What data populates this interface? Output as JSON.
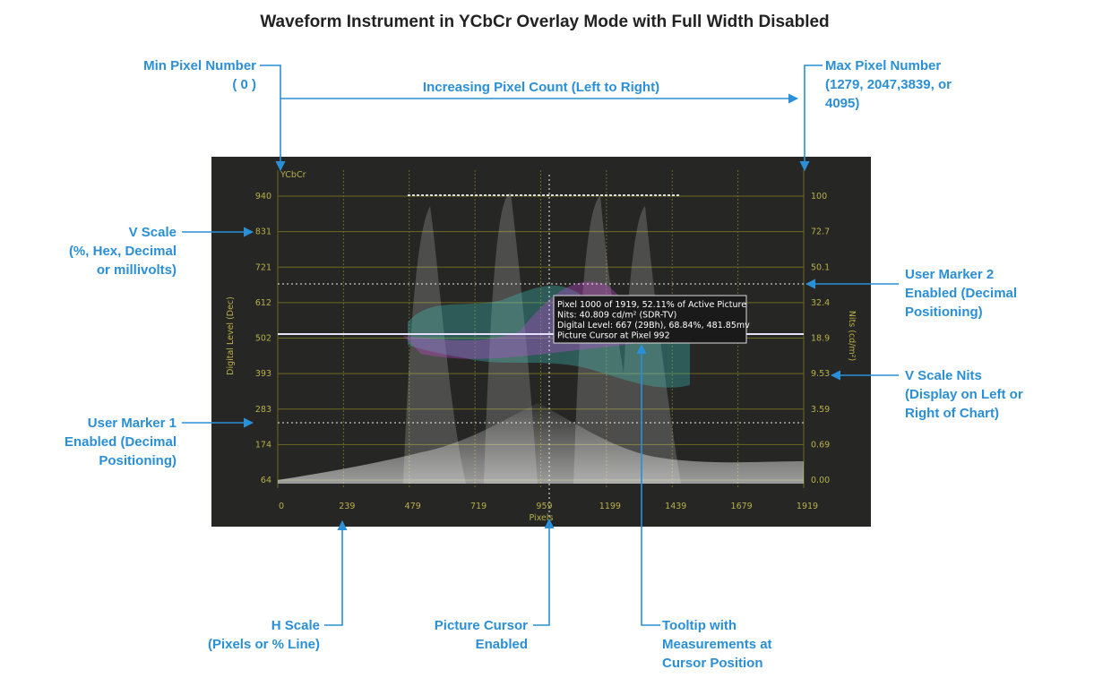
{
  "title": "Waveform Instrument in YCbCr Overlay Mode with Full Width Disabled",
  "panel": {
    "mode_label": "YCbCr",
    "y_axis_label": "Digital Level (Dec)",
    "y2_axis_label": "Nits (cd/m²)",
    "x_axis_label": "Pixels",
    "y_ticks": [
      "940",
      "831",
      "721",
      "612",
      "502",
      "393",
      "283",
      "174",
      "64"
    ],
    "y2_ticks": [
      "100",
      "72.7",
      "50.1",
      "32.4",
      "18.9",
      "9.53",
      "3.59",
      "0.69",
      "0.00"
    ],
    "x_ticks": [
      "0",
      "239",
      "479",
      "719",
      "959",
      "1199",
      "1439",
      "1679",
      "1919"
    ],
    "tooltip": [
      "Pixel 1000 of 1919, 52.11% of Active Picture",
      "Nits: 40.809 cd/m² (SDR-TV)",
      "Digital Level: 667 (29Bh), 68.84%, 481.85mv",
      "Picture Cursor at Pixel 992"
    ]
  },
  "callouts": [
    {
      "lines": [
        "Min Pixel Number",
        "( 0 )"
      ]
    },
    {
      "lines": [
        "Increasing Pixel Count (Left to Right)"
      ]
    },
    {
      "lines": [
        "Max Pixel Number",
        "(1279, 2047,3839, or",
        "4095)"
      ]
    },
    {
      "lines": [
        "V Scale",
        "(%, Hex, Decimal",
        "or millivolts)"
      ]
    },
    {
      "lines": [
        "User Marker 2",
        "Enabled (Decimal",
        "Positioning)"
      ]
    },
    {
      "lines": [
        "V Scale Nits",
        "(Display on Left or",
        "Right of Chart)"
      ]
    },
    {
      "lines": [
        "User Marker 1",
        "Enabled (Decimal",
        "Positioning)"
      ]
    },
    {
      "lines": [
        "H Scale",
        "(Pixels or % Line)"
      ]
    },
    {
      "lines": [
        "Picture Cursor",
        "Enabled"
      ]
    },
    {
      "lines": [
        "Tooltip with",
        "Measurements at",
        "Cursor Position"
      ]
    }
  ]
}
